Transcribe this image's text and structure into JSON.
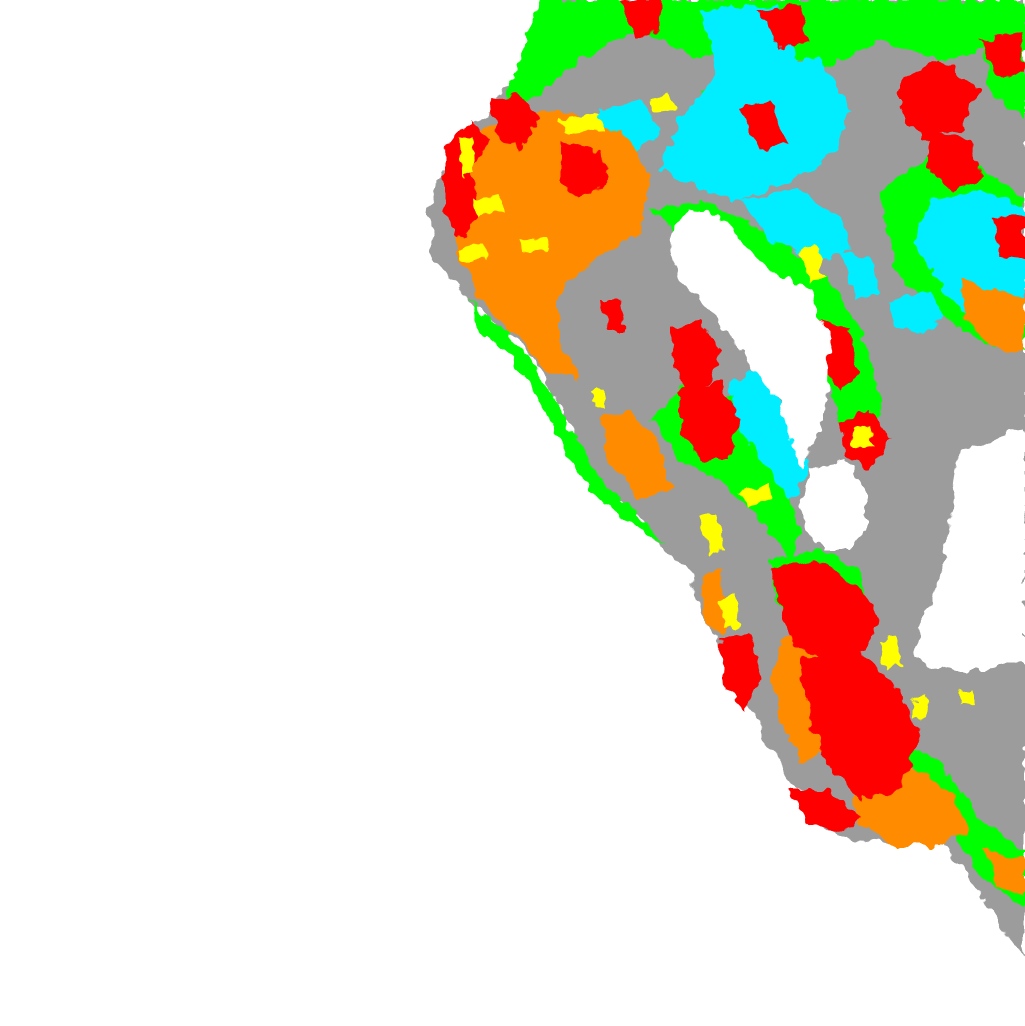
{
  "map": {
    "legend_colors": {
      "land": "#9c9c9c",
      "water": "#ffffff",
      "class_green": "#00ff00",
      "class_orange": "#ff8c00",
      "class_red": "#ff0000",
      "class_yellow": "#ffff00",
      "class_cyan": "#00eeff"
    },
    "classes": [
      "land",
      "class_green",
      "class_orange",
      "class_red",
      "class_yellow",
      "class_cyan"
    ]
  }
}
